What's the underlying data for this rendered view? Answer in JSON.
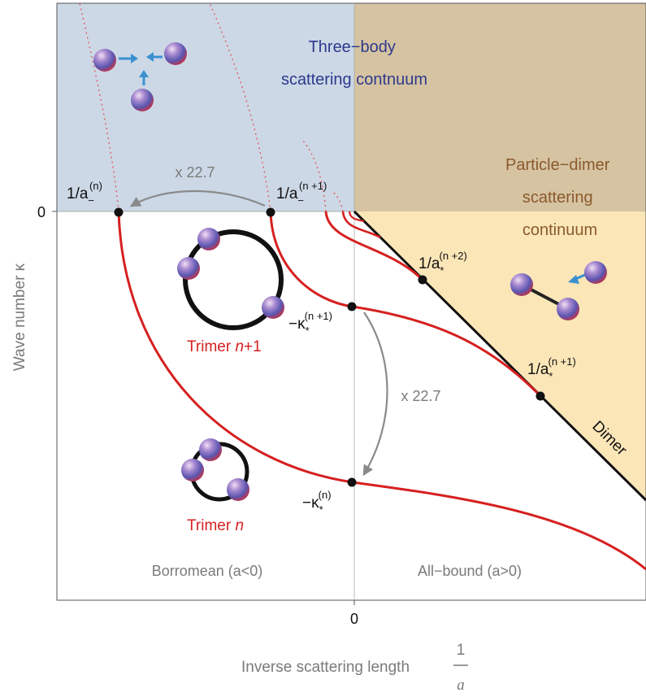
{
  "regions": {
    "three_body": [
      "Three−body",
      "scattering contnuum"
    ],
    "particle_dimer": [
      "Particle−dimer",
      "scattering",
      "continuum"
    ],
    "borromean": "Borromean (a<0)",
    "all_bound": "All−bound (a>0)"
  },
  "axes": {
    "ylabel": "Wave number κ",
    "xlabel": "Inverse scattering length",
    "xlabel_fraction": {
      "num": "1",
      "den": "a"
    },
    "y_zero": "0",
    "x_zero": "0"
  },
  "annotations": {
    "factor_top": "x 22.7",
    "factor_right": "x 22.7",
    "dimer": "Dimer",
    "trimer_n1": {
      "prefix": "Trimer ",
      "var": "n",
      "suffix": "+1"
    },
    "trimer_n": {
      "prefix": "Trimer ",
      "var": "n",
      "suffix": ""
    }
  },
  "points": {
    "a_minus_n": {
      "base": "1/a",
      "sub": "−",
      "sup": "(n)"
    },
    "a_minus_n1": {
      "base": "1/a",
      "sub": "−",
      "sup": "(n +1)"
    },
    "a_star_n2": {
      "base": "1/a",
      "sub": "*",
      "sup": "(n +2)"
    },
    "a_star_n1": {
      "base": "1/a",
      "sub": "*",
      "sup": "(n +1)"
    },
    "k_star_n1": {
      "base": "−κ",
      "sub": "*",
      "sup": "(n +1)"
    },
    "k_star_n": {
      "base": "−κ",
      "sub": "*",
      "sup": "(n)"
    }
  },
  "colors": {
    "three_body_region": "#ccd8e6",
    "particle_dimer_region": "#fbe6b8",
    "overlap_region": "#d6c3a2",
    "trimer_curves": "#d62020",
    "dimer_line": "#111111",
    "arrows": "#8a8a8a"
  }
}
